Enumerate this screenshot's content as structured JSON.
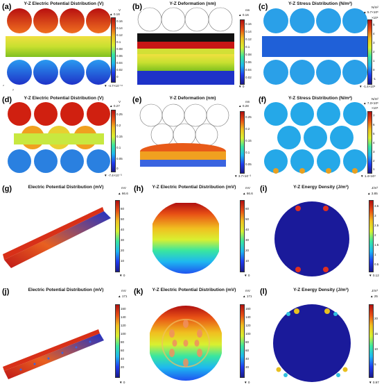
{
  "panels": [
    {
      "label": "(a)",
      "title": "Y-Z Electric Potential Distribution (V)",
      "unit": "V",
      "max": "▲ 0.18",
      "min": "▼ -4.7×10⁻¹¹",
      "ticks": [
        "0.16",
        "0.14",
        "0.12",
        "0.1",
        "0.08",
        "0.06",
        "0.04",
        "0.02",
        "0"
      ]
    },
    {
      "label": "(b)",
      "title": "Y-Z Deformation (nm)",
      "unit": "nm",
      "max": "▲ 0.16",
      "min": "▼ 0",
      "ticks": [
        "0.16",
        "0.14",
        "0.12",
        "0.1",
        "0.08",
        "0.06",
        "0.04",
        "0.02"
      ]
    },
    {
      "label": "(c)",
      "title": "Y-Z Stress Distribution (N/m²)",
      "unit": "N/m²",
      "max": "▲ 5.7×10⁶",
      "min": "▼ -1.4×10⁶",
      "ticks": [
        "×10⁶",
        "5",
        "4",
        "3",
        "2",
        "1",
        "0",
        "-1"
      ]
    },
    {
      "label": "(d)",
      "title": "Y-Z Electric Potential Distribution (V)",
      "unit": "V",
      "max": "▲ 0.27",
      "min": "▼ -7.4×10⁻³",
      "ticks": [
        "0.25",
        "0.2",
        "0.15",
        "0.1",
        "0.05",
        "0"
      ]
    },
    {
      "label": "(e)",
      "title": "Y-Z Deformation (nm)",
      "unit": "nm",
      "max": "▲ 0.28",
      "min": "▼ 3.7×10⁻³",
      "ticks": [
        "0.25",
        "0.2",
        "0.15",
        "0.1",
        "0.05"
      ]
    },
    {
      "label": "(f)",
      "title": "Y-Z Stress Distribution (N/m²)",
      "unit": "N/m²",
      "max": "▲ 7.3×10⁶",
      "min": "▼ 1.4×10⁴",
      "ticks": [
        "×10⁶",
        "7",
        "6",
        "5",
        "4",
        "3",
        "2",
        "1"
      ]
    },
    {
      "label": "(g)",
      "title": "Electric Potential Distribution (mV)",
      "unit": "mV",
      "max": "▲ 66.6",
      "min": "▼ 0",
      "ticks": [
        "60",
        "50",
        "40",
        "30",
        "20",
        "10"
      ]
    },
    {
      "label": "(h)",
      "title": "Y-Z Electric Potential Distribution (mV)",
      "unit": "mV",
      "max": "▲ 66.6",
      "min": "▼ 0",
      "ticks": [
        "60",
        "50",
        "40",
        "30",
        "20",
        "10"
      ]
    },
    {
      "label": "(i)",
      "title": "Y-Z Energy Density (J/m³)",
      "unit": "J/m³",
      "max": "▲ 3.85",
      "min": "▼ 0.12",
      "ticks": [
        "3.5",
        "3",
        "2.5",
        "2",
        "1.5",
        "1",
        "0.5"
      ]
    },
    {
      "label": "(j)",
      "title": "Electric Potential Distribution (mV)",
      "unit": "mV",
      "max": "▲ 171",
      "min": "▼ 0",
      "ticks": [
        "160",
        "140",
        "120",
        "100",
        "80",
        "60",
        "40",
        "20"
      ]
    },
    {
      "label": "(k)",
      "title": "Y-Z Electric Potential Distribution (mV)",
      "unit": "mV",
      "max": "▲ 171",
      "min": "▼ 0",
      "ticks": [
        "160",
        "140",
        "120",
        "100",
        "80",
        "60",
        "40",
        "20"
      ]
    },
    {
      "label": "(l)",
      "title": "Y-Z Energy Density  (J/m³)",
      "unit": "J/m³",
      "max": "▲ 25",
      "min": "▼ 0.97",
      "ticks": [
        "20",
        "15",
        "10",
        "5"
      ]
    }
  ],
  "axis_marks": {
    "y": "y",
    "z": "z"
  }
}
